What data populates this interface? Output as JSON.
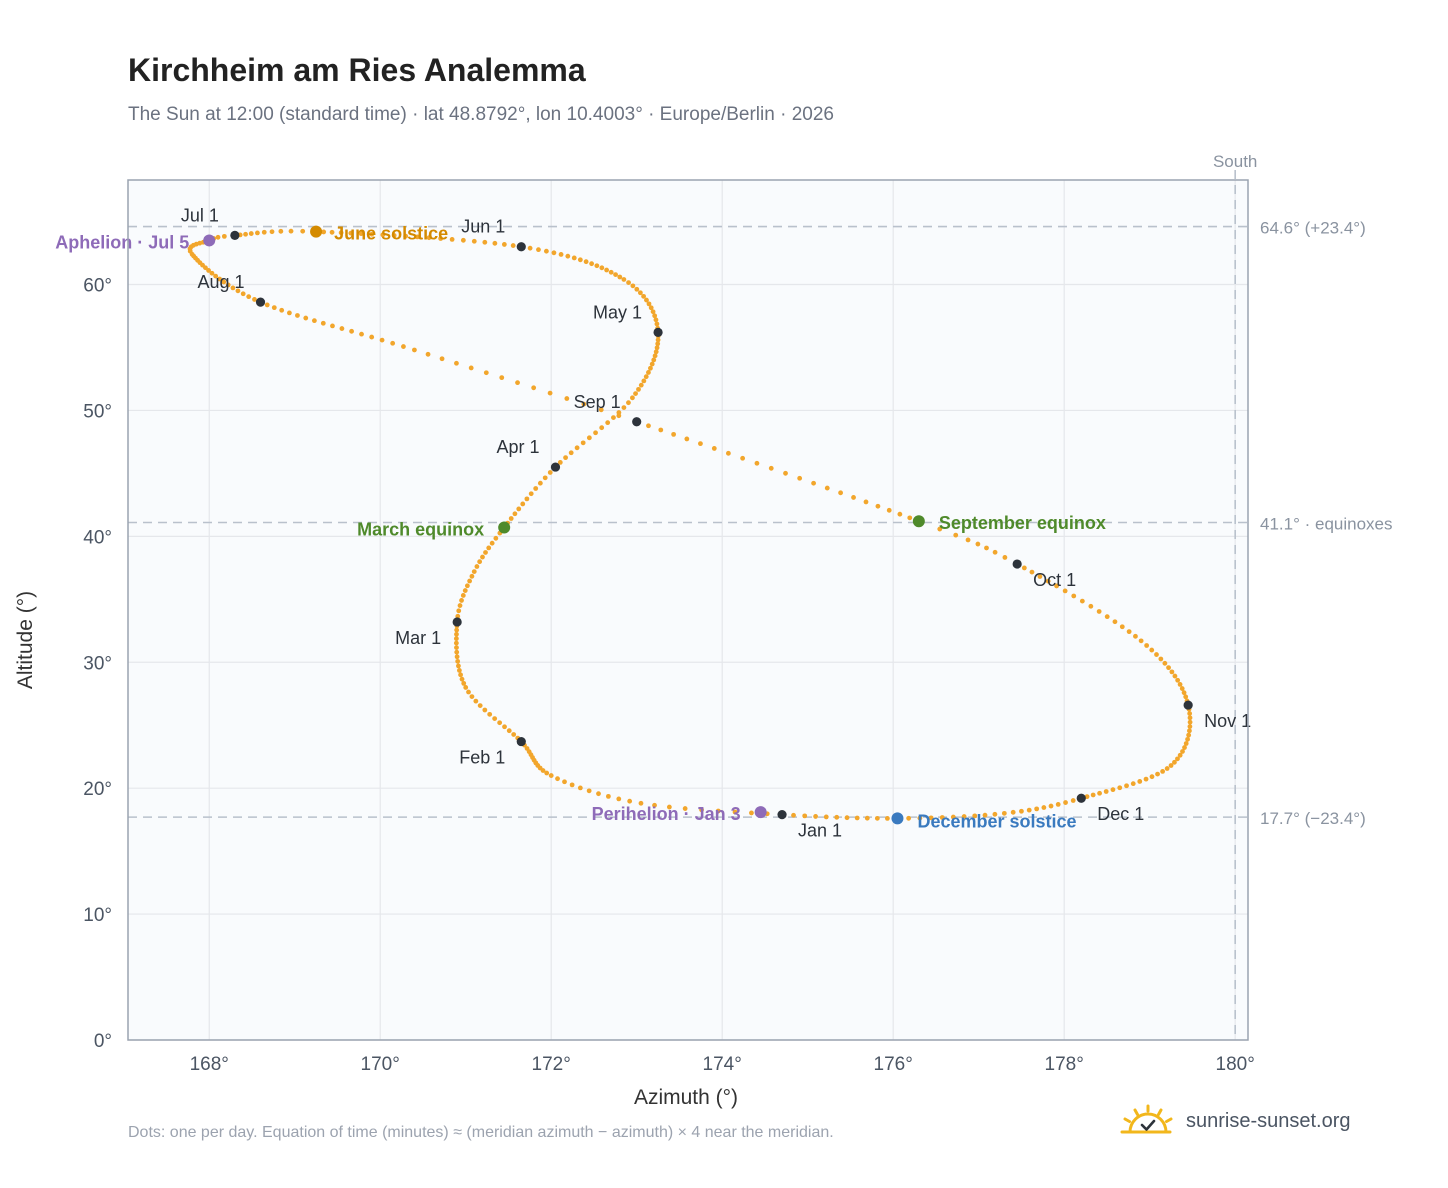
{
  "header": {
    "title": "Kirchheim am Ries Analemma",
    "subtitle": "The Sun at 12:00 (standard time) · lat 48.8792°, lon 10.4003° · Europe/Berlin · 2026"
  },
  "footer": {
    "note": "Dots: one per day. Equation of time (minutes) ≈ (meridian azimuth − azimuth) × 4 near the meridian.",
    "brand": "sunrise-sunset.org"
  },
  "colors": {
    "path": "#f2a62c",
    "month_marker": "#2d333b",
    "solstice_june": "#d48a00",
    "solstice_december": "#3a7abf",
    "equinox": "#4f8a2b",
    "apsis": "#8e6bb8",
    "grid": "#e5e7eb",
    "plot_bg": "#f9fbfd",
    "frame": "#9aa3b0",
    "ref_line": "#b9c1cc"
  },
  "chart_data": {
    "type": "scatter",
    "title": "Kirchheim am Ries Analemma",
    "xlabel": "Azimuth (°)",
    "ylabel": "Altitude (°)",
    "xlim": [
      167.05,
      180.15
    ],
    "ylim": [
      0,
      68.3
    ],
    "xticks": [
      168,
      170,
      172,
      174,
      176,
      178,
      180
    ],
    "xtick_labels": [
      "168°",
      "170°",
      "172°",
      "174°",
      "176°",
      "178°",
      "180°"
    ],
    "yticks": [
      0,
      10,
      20,
      30,
      40,
      50,
      60
    ],
    "ytick_labels": [
      "0°",
      "10°",
      "20°",
      "30°",
      "40°",
      "50°",
      "60°"
    ],
    "grid": true,
    "series": [
      {
        "points_note": "one dot per day",
        "anchors": [
          {
            "day": 1,
            "az": 174.7,
            "alt": 17.9
          },
          {
            "day": 10,
            "az": 173.05,
            "alt": 18.8
          },
          {
            "day": 20,
            "az": 172.0,
            "alt": 21.0
          },
          {
            "day": 32,
            "az": 171.65,
            "alt": 23.7
          },
          {
            "day": 45,
            "az": 171.0,
            "alt": 28.0
          },
          {
            "day": 60,
            "az": 170.9,
            "alt": 33.2
          },
          {
            "day": 70,
            "az": 171.1,
            "alt": 37.2
          },
          {
            "day": 79,
            "az": 171.45,
            "alt": 40.7
          },
          {
            "day": 91,
            "az": 172.05,
            "alt": 45.5
          },
          {
            "day": 105,
            "az": 172.95,
            "alt": 51.0
          },
          {
            "day": 121,
            "az": 173.25,
            "alt": 56.2
          },
          {
            "day": 135,
            "az": 172.85,
            "alt": 60.4
          },
          {
            "day": 152,
            "az": 171.65,
            "alt": 63.0
          },
          {
            "day": 172,
            "az": 169.25,
            "alt": 64.2
          },
          {
            "day": 182,
            "az": 168.3,
            "alt": 63.9
          },
          {
            "day": 186,
            "az": 168.0,
            "alt": 63.5
          },
          {
            "day": 195,
            "az": 167.8,
            "alt": 62.4
          },
          {
            "day": 213,
            "az": 168.6,
            "alt": 58.6
          },
          {
            "day": 230,
            "az": 170.4,
            "alt": 54.8
          },
          {
            "day": 244,
            "az": 173.0,
            "alt": 49.1
          },
          {
            "day": 266,
            "az": 176.3,
            "alt": 41.2
          },
          {
            "day": 274,
            "az": 177.45,
            "alt": 37.8
          },
          {
            "day": 290,
            "az": 178.9,
            "alt": 31.7
          },
          {
            "day": 305,
            "az": 179.45,
            "alt": 26.6
          },
          {
            "day": 320,
            "az": 179.25,
            "alt": 21.8
          },
          {
            "day": 335,
            "az": 178.2,
            "alt": 19.2
          },
          {
            "day": 345,
            "az": 177.3,
            "alt": 18.0
          },
          {
            "day": 355,
            "az": 176.05,
            "alt": 17.6
          },
          {
            "day": 366,
            "az": 174.7,
            "alt": 17.9
          }
        ]
      }
    ],
    "month_markers": [
      {
        "label": "Jan 1",
        "az": 174.7,
        "alt": 17.9
      },
      {
        "label": "Feb 1",
        "az": 171.65,
        "alt": 23.7
      },
      {
        "label": "Mar 1",
        "az": 170.9,
        "alt": 33.2
      },
      {
        "label": "Apr 1",
        "az": 172.05,
        "alt": 45.5
      },
      {
        "label": "May 1",
        "az": 173.25,
        "alt": 56.2
      },
      {
        "label": "Jun 1",
        "az": 171.65,
        "alt": 63.0
      },
      {
        "label": "Jul 1",
        "az": 168.3,
        "alt": 63.9
      },
      {
        "label": "Aug 1",
        "az": 168.6,
        "alt": 58.6
      },
      {
        "label": "Sep 1",
        "az": 173.0,
        "alt": 49.1
      },
      {
        "label": "Oct 1",
        "az": 177.45,
        "alt": 37.8
      },
      {
        "label": "Nov 1",
        "az": 179.45,
        "alt": 26.6
      },
      {
        "label": "Dec 1",
        "az": 178.2,
        "alt": 19.2
      }
    ],
    "events": [
      {
        "label": "June solstice",
        "az": 169.25,
        "alt": 64.2,
        "kind": "solstice_june"
      },
      {
        "label": "December solstice",
        "az": 176.05,
        "alt": 17.6,
        "kind": "solstice_december"
      },
      {
        "label": "March equinox",
        "az": 171.45,
        "alt": 40.7,
        "kind": "equinox"
      },
      {
        "label": "September equinox",
        "az": 176.3,
        "alt": 41.2,
        "kind": "equinox"
      },
      {
        "label": "Aphelion · Jul 5",
        "az": 168.0,
        "alt": 63.5,
        "kind": "apsis"
      },
      {
        "label": "Perihelion · Jan 3",
        "az": 174.45,
        "alt": 18.1,
        "kind": "apsis"
      }
    ],
    "reference_lines": [
      {
        "alt": 64.6,
        "label": "64.6° (+23.4°)"
      },
      {
        "alt": 41.1,
        "label": "41.1° · equinoxes"
      },
      {
        "alt": 17.7,
        "label": "17.7° (−23.4°)"
      }
    ],
    "meridian": {
      "az": 180,
      "label": "South"
    }
  }
}
